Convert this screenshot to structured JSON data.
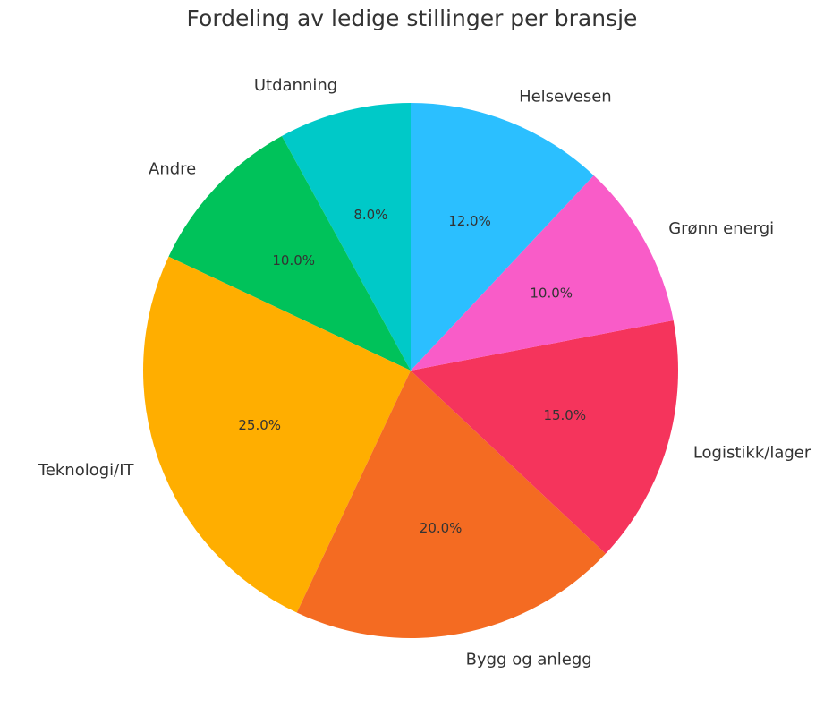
{
  "chart_data": {
    "type": "pie",
    "title": "Fordeling av ledige stillinger per bransje",
    "start_angle_deg": 90,
    "direction": "counterclockwise",
    "slices": [
      {
        "label": "Utdanning",
        "value": 8.0,
        "pct_label": "8.0%",
        "color": "#00C9C8"
      },
      {
        "label": "Andre",
        "value": 10.0,
        "pct_label": "10.0%",
        "color": "#00C25A"
      },
      {
        "label": "Teknologi/IT",
        "value": 25.0,
        "pct_label": "25.0%",
        "color": "#FFAE00"
      },
      {
        "label": "Bygg og anlegg",
        "value": 20.0,
        "pct_label": "20.0%",
        "color": "#F46B22"
      },
      {
        "label": "Logistikk/lager",
        "value": 15.0,
        "pct_label": "15.0%",
        "color": "#F5345C"
      },
      {
        "label": "Grønn energi",
        "value": 10.0,
        "pct_label": "10.0%",
        "color": "#F95CC8"
      },
      {
        "label": "Helsevesen",
        "value": 12.0,
        "pct_label": "12.0%",
        "color": "#2BBFFF"
      }
    ]
  }
}
